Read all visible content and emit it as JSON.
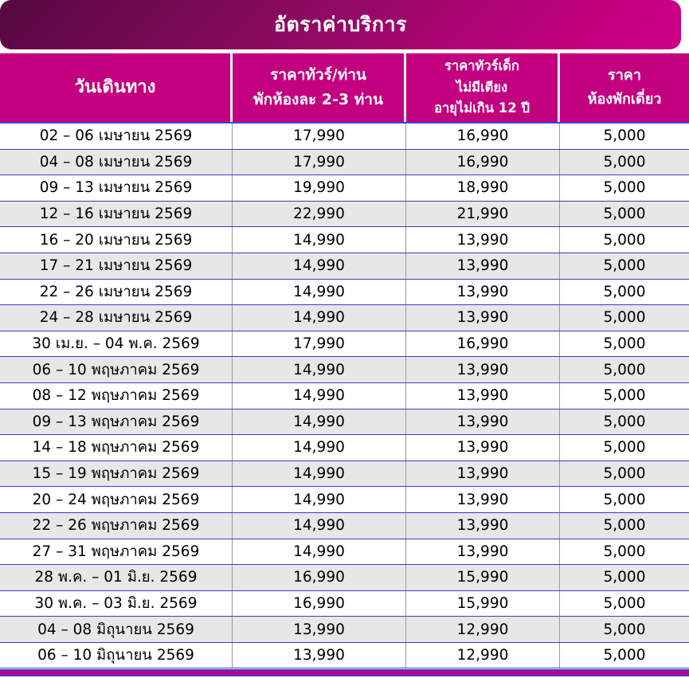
{
  "title": "อัตราค่าบริการ",
  "colors": {
    "header_bg": "#c3007f",
    "title_gradient_start": "#55093f",
    "title_gradient_end": "#ce0089",
    "row_alt_bg": "#e7e7e7",
    "row_border_blue": "#3a3acb",
    "column_divider_gray": "#9a9a9a",
    "header_text": "#ffffff",
    "body_text": "#000000"
  },
  "table": {
    "columns": [
      {
        "id": "dates",
        "label_lines": [
          "วันเดินทาง"
        ]
      },
      {
        "id": "adult_price",
        "label_lines": [
          "ราคาทัวร์/ท่าน",
          "พักห้องละ 2-3 ท่าน"
        ]
      },
      {
        "id": "child_price",
        "label_lines": [
          "ราคาทัวร์เด็ก",
          "ไม่มีเตียง",
          "อายุไม่เกิน 12 ปี"
        ]
      },
      {
        "id": "single_room",
        "label_lines": [
          "ราคา",
          "ห้องพักเดี่ยว"
        ]
      }
    ],
    "rows": [
      [
        "02 – 06 เมษายน 2569",
        "17,990",
        "16,990",
        "5,000"
      ],
      [
        "04 – 08 เมษายน 2569",
        "17,990",
        "16,990",
        "5,000"
      ],
      [
        "09 – 13 เมษายน 2569",
        "19,990",
        "18,990",
        "5,000"
      ],
      [
        "12 – 16 เมษายน 2569",
        "22,990",
        "21,990",
        "5,000"
      ],
      [
        "16 – 20 เมษายน 2569",
        "14,990",
        "13,990",
        "5,000"
      ],
      [
        "17 – 21 เมษายน 2569",
        "14,990",
        "13,990",
        "5,000"
      ],
      [
        "22 – 26 เมษายน 2569",
        "14,990",
        "13,990",
        "5,000"
      ],
      [
        "24 – 28 เมษายน 2569",
        "14,990",
        "13,990",
        "5,000"
      ],
      [
        "30 เม.ย. – 04 พ.ค. 2569",
        "17,990",
        "16,990",
        "5,000"
      ],
      [
        "06 – 10 พฤษภาคม 2569",
        "14,990",
        "13,990",
        "5,000"
      ],
      [
        "08 – 12 พฤษภาคม 2569",
        "14,990",
        "13,990",
        "5,000"
      ],
      [
        "09 – 13 พฤษภาคม 2569",
        "14,990",
        "13,990",
        "5,000"
      ],
      [
        "14 – 18 พฤษภาคม 2569",
        "14,990",
        "13,990",
        "5,000"
      ],
      [
        "15 – 19 พฤษภาคม 2569",
        "14,990",
        "13,990",
        "5,000"
      ],
      [
        "20 – 24 พฤษภาคม 2569",
        "14,990",
        "13,990",
        "5,000"
      ],
      [
        "22 – 26 พฤษภาคม 2569",
        "14,990",
        "13,990",
        "5,000"
      ],
      [
        "27 – 31 พฤษภาคม 2569",
        "14,990",
        "13,990",
        "5,000"
      ],
      [
        "28 พ.ค. – 01 มิ.ย. 2569",
        "16,990",
        "15,990",
        "5,000"
      ],
      [
        "30 พ.ค. – 03 มิ.ย. 2569",
        "16,990",
        "15,990",
        "5,000"
      ],
      [
        "04 – 08 มิถุนายน 2569",
        "13,990",
        "12,990",
        "5,000"
      ],
      [
        "06 – 10 มิถุนายน 2569",
        "13,990",
        "12,990",
        "5,000"
      ]
    ]
  }
}
